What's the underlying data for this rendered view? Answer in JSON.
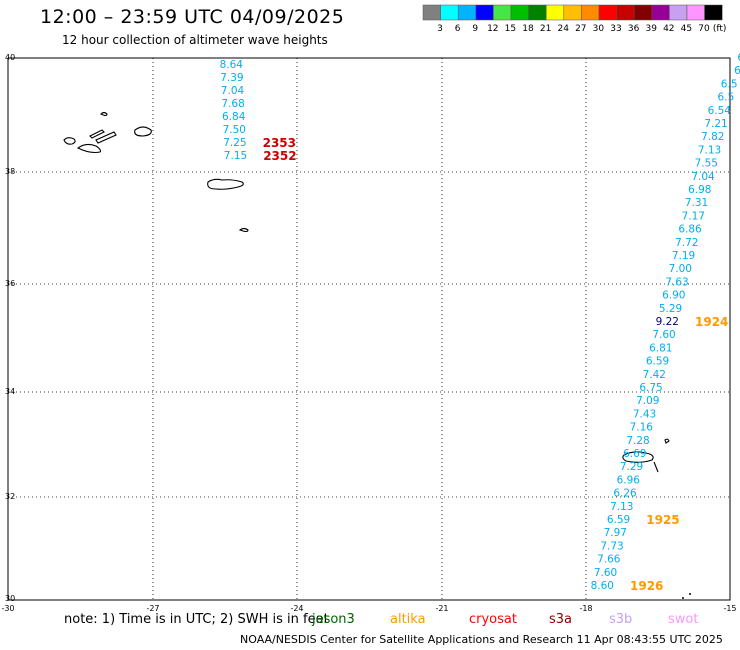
{
  "title": "12:00 – 23:59 UTC 04/09/2025",
  "subtitle": "12 hour collection of altimeter wave heights",
  "legend": {
    "colors": [
      "#808080",
      "#00ffff",
      "#00b4ff",
      "#0000ff",
      "#46e646",
      "#00be00",
      "#008200",
      "#ffff00",
      "#ffbe00",
      "#ff8c00",
      "#ff0000",
      "#c80000",
      "#820000",
      "#960096",
      "#c8a0f0",
      "#ff96ff",
      "#000000"
    ],
    "labels": [
      "3",
      "6",
      "9",
      "12",
      "15",
      "18",
      "21",
      "24",
      "27",
      "30",
      "33",
      "36",
      "39",
      "42",
      "45",
      "70",
      "(ft)"
    ]
  },
  "lat_labels": [
    "40",
    "38",
    "36",
    "34",
    "32",
    "30"
  ],
  "lon_labels": [
    "-30",
    "-27",
    "-24",
    "-21",
    "-18",
    "-15"
  ],
  "colors": {
    "tick_blue": "#00aeef",
    "pass_red": "#cc0000",
    "pass_orange": "#ff9900",
    "dark_blue": "#000080"
  },
  "tracks": [
    {
      "name": "track-west",
      "values": [
        "8.64",
        "7.39",
        "7.04",
        "7.68",
        "6.84",
        "7.50",
        "7.25",
        "7.15"
      ],
      "pass_labels": [
        {
          "text": "2353",
          "color": "#cc0000",
          "after": 6
        },
        {
          "text": "2352",
          "color": "#cc0000",
          "after": 7
        }
      ]
    },
    {
      "name": "track-east",
      "values": [
        "6",
        "6",
        "6.5",
        "6.5",
        "6.54",
        "7.21",
        "7.82",
        "7.13",
        "7.55",
        "7.04",
        "6.98",
        "7.31",
        "7.17",
        "6.86",
        "7.72",
        "7.19",
        "7.00",
        "7.63",
        "6.90",
        "5.29",
        "9.22",
        "7.60",
        "6.81",
        "6.59",
        "7.42",
        "6.75",
        "7.09",
        "7.43",
        "7.16",
        "7.28",
        "6.69",
        "7.29",
        "6.96",
        "6.26",
        "7.13",
        "6.59",
        "7.97",
        "7.73",
        "7.66",
        "7.60",
        "8.60"
      ],
      "highlight_index": 20,
      "highlight_color": "#000080",
      "pass_labels": [
        {
          "text": "1924",
          "color": "#ff9900",
          "after": 20
        },
        {
          "text": "1925",
          "color": "#ff9900",
          "after": 35
        },
        {
          "text": "1926",
          "color": "#ff9900",
          "after": 40
        }
      ]
    }
  ],
  "note": "note:  1) Time is in UTC;  2) SWH is in feet",
  "missions": [
    {
      "name": "jason3",
      "color": "#006400"
    },
    {
      "name": "altika",
      "color": "#ff9900"
    },
    {
      "name": "cryosat",
      "color": "#ff0000"
    },
    {
      "name": "s3a",
      "color": "#8b0000"
    },
    {
      "name": "s3b",
      "color": "#c8a0f0"
    },
    {
      "name": "swot",
      "color": "#ff96ff"
    }
  ],
  "credit": "NOAA/NESDIS Center for Satellite Applications and Research     11 Apr 08:43:55 UTC 2025"
}
